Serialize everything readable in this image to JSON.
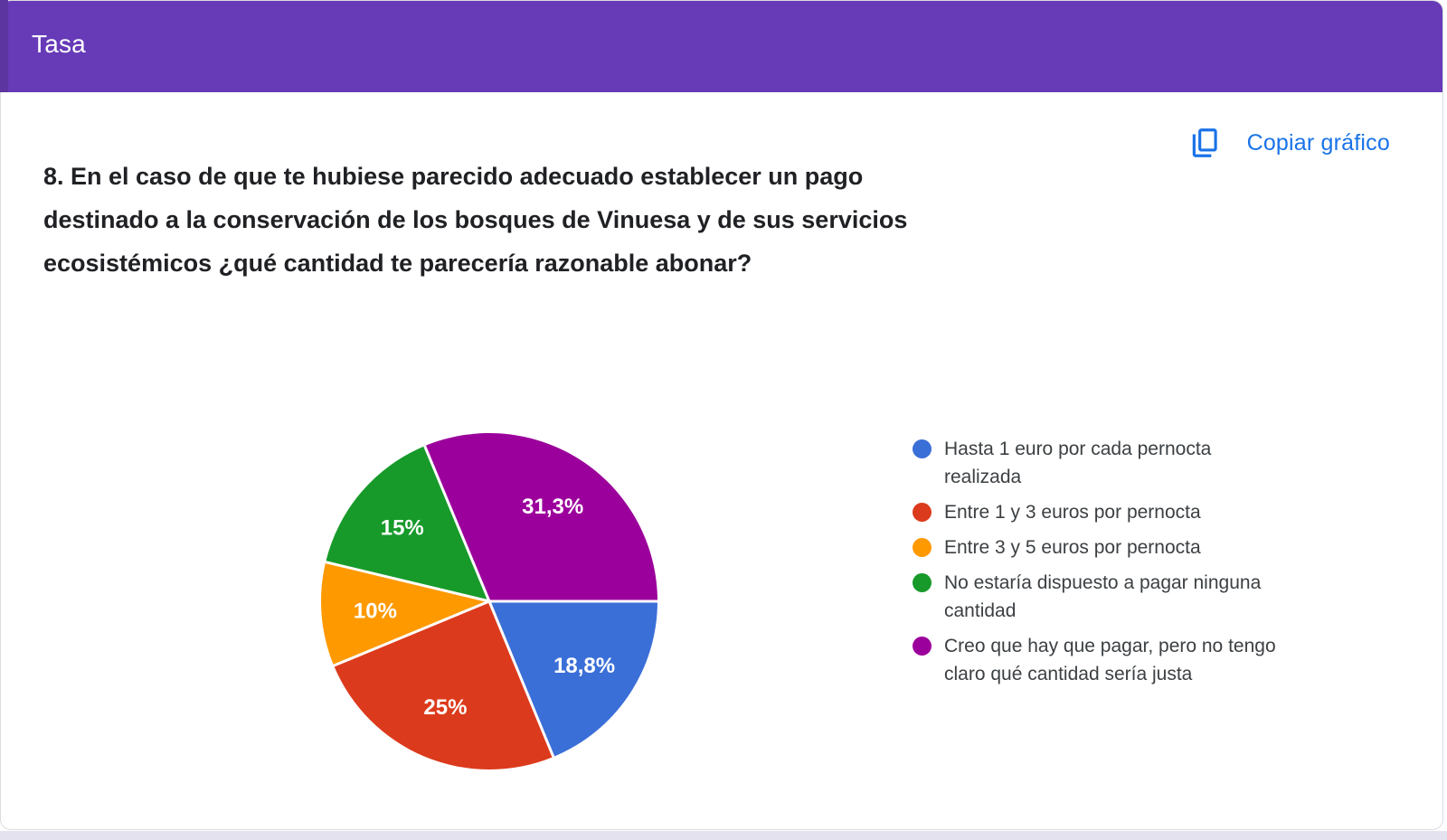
{
  "page": {
    "background": "#ffffff",
    "bottom_strip_color": "#E4E2EE"
  },
  "header": {
    "title": "Tasa",
    "background": "#673AB7",
    "edge_strip_color": "#5C35A0",
    "text_color": "#ffffff"
  },
  "toolbar": {
    "copy_button_label": "Copiar gráfico",
    "accent_color": "#1A73E8"
  },
  "question": {
    "lines": [
      "8. En el caso de que te hubiese parecido adecuado establecer un pago",
      "destinado a la conservación de los bosques de Vinuesa y de sus servicios",
      "ecosistémicos ¿qué cantidad te parecería razonable abonar?"
    ]
  },
  "chart_data": {
    "type": "pie",
    "title": "",
    "categories": [
      "Hasta 1 euro por cada pernocta realizada",
      "Entre 1 y 3 euros por pernocta",
      "Entre 3 y 5 euros por pernocta",
      "No estaría dispuesto a pagar ninguna cantidad",
      "Creo que hay que pagar, pero no tengo claro qué cantidad sería justa"
    ],
    "values": [
      18.8,
      25,
      10,
      15,
      31.3
    ],
    "slice_labels": [
      "18,8%",
      "25%",
      "10%",
      "15%",
      "31,3%"
    ],
    "colors": [
      "#3B6FD8",
      "#DC3A1C",
      "#FF9900",
      "#179A2A",
      "#9C009C"
    ],
    "start_angle": "east-clockwise",
    "slice_label_color": "#ffffff",
    "legend_position": "right"
  },
  "legend": {
    "items": [
      {
        "lines": [
          "Hasta 1 euro por cada pernocta",
          "realizada"
        ],
        "color": "#3B6FD8"
      },
      {
        "lines": [
          "Entre 1 y 3 euros por pernocta"
        ],
        "color": "#DC3A1C"
      },
      {
        "lines": [
          "Entre 3 y 5 euros por pernocta"
        ],
        "color": "#FF9900"
      },
      {
        "lines": [
          "No estaría dispuesto a pagar ninguna",
          "cantidad"
        ],
        "color": "#179A2A"
      },
      {
        "lines": [
          "Creo que hay que pagar, pero no tengo",
          "claro qué cantidad sería justa"
        ],
        "color": "#9C009C"
      }
    ]
  }
}
